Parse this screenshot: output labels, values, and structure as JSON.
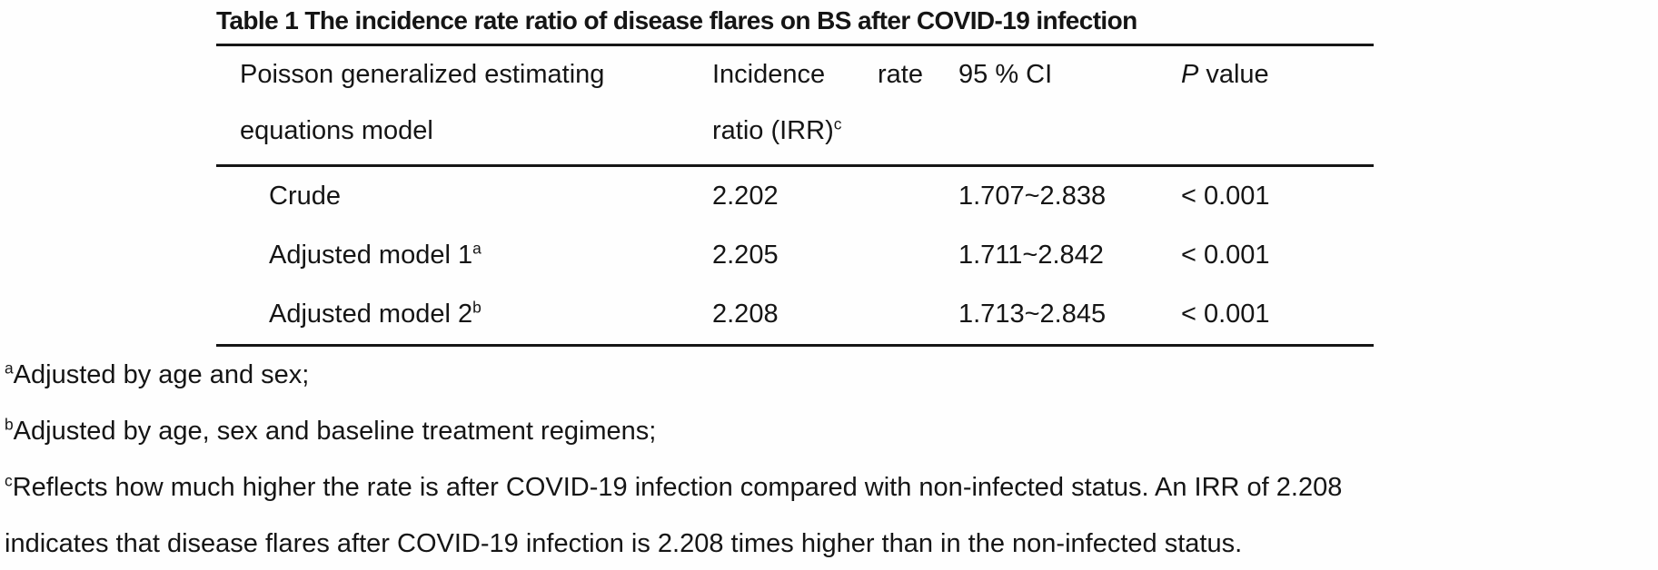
{
  "page": {
    "background": "#ffffff",
    "text_color": "#151515",
    "rule_color": "#161616"
  },
  "table": {
    "title": "Table 1 The incidence rate ratio of disease flares on BS after COVID-19 infection",
    "header": {
      "col1_line1": "Poisson generalized estimating",
      "col1_line2": "equations model",
      "col2_word1": "Incidence",
      "col2_word2": "rate",
      "col2_line2": "ratio (IRR)",
      "col2_superscript": "c",
      "col3": "95 % CI",
      "col4_italic": "P",
      "col4_rest": "value"
    },
    "rows": [
      {
        "label": "Crude",
        "superscript": "",
        "irr": "2.202",
        "ci_95": "1.707~2.838",
        "p_value": "< 0.001"
      },
      {
        "label": "Adjusted model 1",
        "superscript": "a",
        "irr": "2.205",
        "ci_95": "1.711~2.842",
        "p_value": "< 0.001"
      },
      {
        "label": "Adjusted model 2",
        "superscript": "b",
        "irr": "2.208",
        "ci_95": "1.713~2.845",
        "p_value": "< 0.001"
      }
    ]
  },
  "footnotes": [
    {
      "marker": "a",
      "lines": [
        "Adjusted by age and sex;"
      ]
    },
    {
      "marker": "b",
      "lines": [
        "Adjusted by age, sex and baseline treatment regimens;"
      ]
    },
    {
      "marker": "c",
      "lines": [
        "Reflects how much higher the rate is after COVID-19 infection compared with non-infected status. An IRR of 2.208",
        "indicates that disease flares after COVID-19 infection is 2.208 times higher than in the non-infected status."
      ]
    }
  ]
}
